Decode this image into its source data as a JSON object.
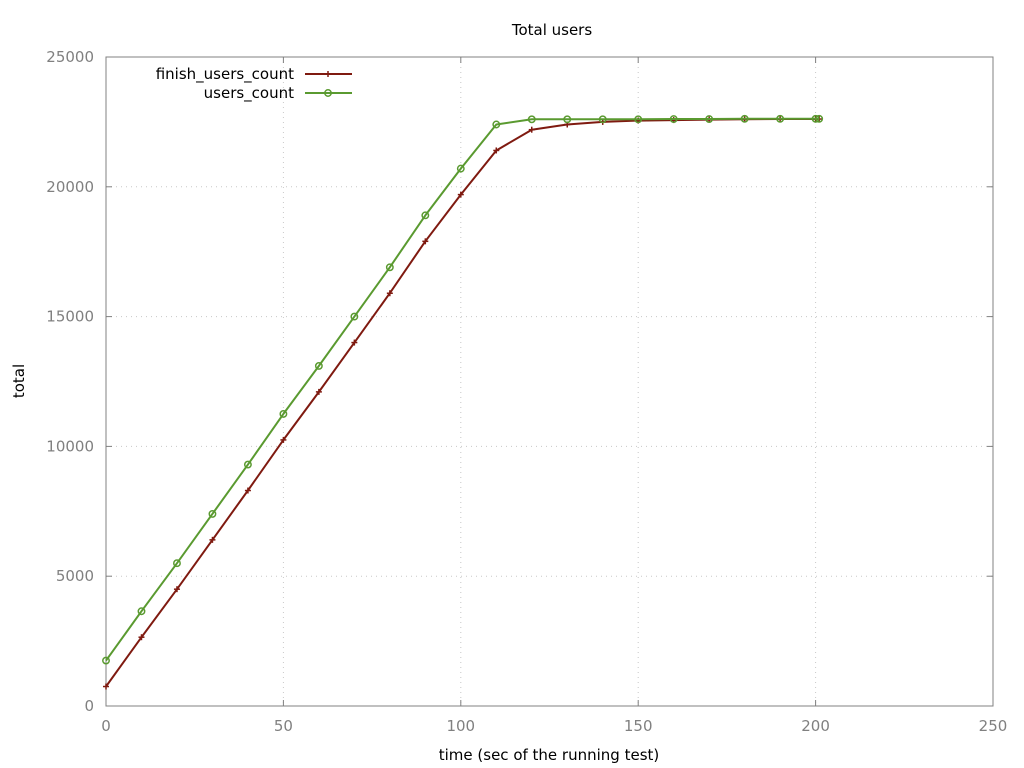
{
  "chart_data": {
    "type": "line",
    "title": "Total users",
    "xlabel": "time (sec of the running test)",
    "ylabel": "total",
    "xlim": [
      0,
      250
    ],
    "ylim": [
      0,
      25000
    ],
    "xticks": [
      0,
      50,
      100,
      150,
      200,
      250
    ],
    "yticks": [
      0,
      5000,
      10000,
      15000,
      20000,
      25000
    ],
    "grid": true,
    "legend_position": "top-left",
    "series": [
      {
        "name": "finish_users_count",
        "color": "#7f1a10",
        "marker": "plus",
        "x": [
          0,
          10,
          20,
          30,
          40,
          50,
          60,
          70,
          80,
          90,
          100,
          110,
          120,
          130,
          140,
          150,
          160,
          170,
          180,
          190,
          200,
          201
        ],
        "y": [
          750,
          2650,
          4500,
          6400,
          8300,
          10250,
          12100,
          14000,
          15900,
          17900,
          19700,
          21400,
          22200,
          22400,
          22500,
          22550,
          22570,
          22590,
          22600,
          22610,
          22610,
          22610
        ]
      },
      {
        "name": "users_count",
        "color": "#5a9a30",
        "marker": "circle",
        "x": [
          0,
          10,
          20,
          30,
          40,
          50,
          60,
          70,
          80,
          90,
          100,
          110,
          120,
          130,
          140,
          150,
          160,
          170,
          180,
          190,
          200,
          201
        ],
        "y": [
          1750,
          3650,
          5500,
          7400,
          9300,
          11250,
          13100,
          15000,
          16900,
          18900,
          20700,
          22400,
          22600,
          22600,
          22600,
          22600,
          22610,
          22610,
          22620,
          22620,
          22620,
          22620
        ]
      }
    ]
  }
}
